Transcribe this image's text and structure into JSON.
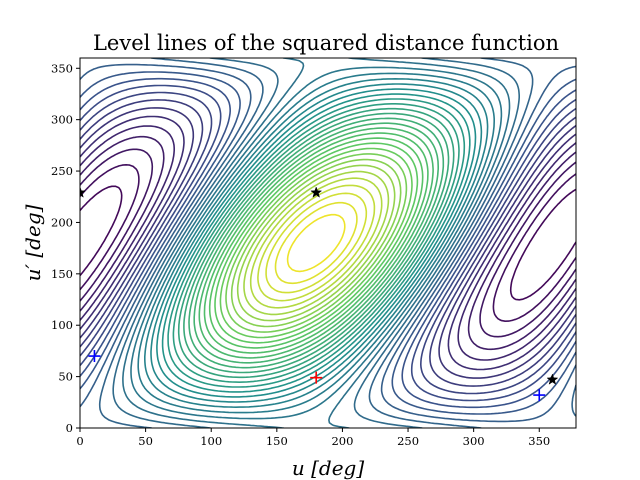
{
  "chart_data": {
    "type": "contour",
    "title": "Level lines of the squared distance function",
    "xlabel": "u [deg]",
    "ylabel": "u′ [deg]",
    "xlim": [
      0,
      378
    ],
    "ylim": [
      0,
      360
    ],
    "xticks": [
      0,
      50,
      100,
      150,
      200,
      250,
      300,
      350
    ],
    "yticks": [
      0,
      50,
      100,
      150,
      200,
      250,
      300,
      350
    ],
    "grid": false,
    "colormap": [
      "#440154",
      "#3b528b",
      "#21918c",
      "#5ec962",
      "#fde725"
    ],
    "level_count": 42,
    "markers": [
      {
        "kind": "star",
        "color": "#000000",
        "x": 0,
        "y": 229
      },
      {
        "kind": "star",
        "color": "#000000",
        "x": 180,
        "y": 229
      },
      {
        "kind": "star",
        "color": "#000000",
        "x": 360,
        "y": 47
      },
      {
        "kind": "plus",
        "color": "#0000ff",
        "x": 11,
        "y": 70
      },
      {
        "kind": "plus",
        "color": "#0000ff",
        "x": 350,
        "y": 32
      },
      {
        "kind": "plus",
        "color": "#ff0000",
        "x": 180,
        "y": 49
      }
    ]
  }
}
